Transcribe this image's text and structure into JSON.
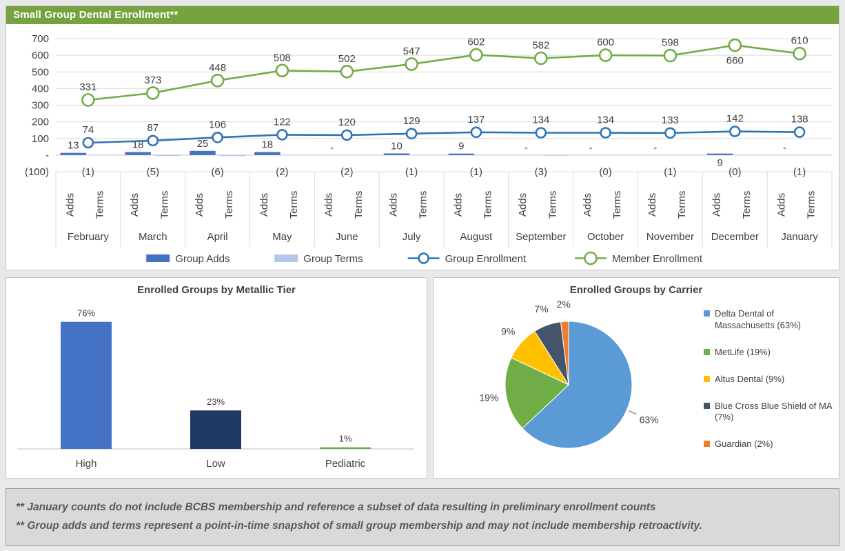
{
  "header": {
    "title": "Small Group Dental Enrollment**"
  },
  "theme": {
    "header_green": "#76A240",
    "footnote_bg": "#D9D9D9",
    "footnote_text": "#595959"
  },
  "chart_data": [
    {
      "type": "combo-bar-line",
      "title": "Small Group Dental Enrollment**",
      "categories": [
        "February",
        "March",
        "April",
        "May",
        "June",
        "July",
        "August",
        "September",
        "October",
        "November",
        "December",
        "January"
      ],
      "sub_categories": [
        "Adds",
        "Terms"
      ],
      "ylim": [
        -100,
        700
      ],
      "y_ticks": [
        700,
        600,
        500,
        400,
        300,
        200,
        100,
        0,
        -100
      ],
      "y_tick_labels": [
        "700",
        "600",
        "500",
        "400",
        "300",
        "200",
        "100",
        "-",
        "(100)"
      ],
      "grid": true,
      "legend_position": "bottom",
      "series": [
        {
          "name": "Group Adds",
          "type": "bar",
          "color": "#4472C4",
          "values": [
            13,
            18,
            25,
            18,
            0,
            10,
            9,
            0,
            0,
            0,
            9,
            0
          ],
          "labels": [
            "13",
            "18",
            "25",
            "18",
            "-",
            "10",
            "9",
            "-",
            "-",
            "-",
            "9",
            "-"
          ],
          "label_below_indices": [
            10
          ]
        },
        {
          "name": "Group Terms",
          "type": "bar",
          "color": "#B4C7E7",
          "values": [
            -1,
            -5,
            -6,
            -2,
            -2,
            -1,
            -1,
            -3,
            0,
            -1,
            0,
            -1
          ],
          "labels": [
            "(1)",
            "(5)",
            "(6)",
            "(2)",
            "(2)",
            "(1)",
            "(1)",
            "(3)",
            "(0)",
            "(1)",
            "(0)",
            "(1)"
          ]
        },
        {
          "name": "Group Enrollment",
          "type": "line",
          "color": "#2E75B6",
          "marker_radius": 7,
          "values": [
            74,
            87,
            106,
            122,
            120,
            129,
            137,
            134,
            134,
            133,
            142,
            138
          ]
        },
        {
          "name": "Member Enrollment",
          "type": "line",
          "color": "#70AD47",
          "marker_radius": 8.5,
          "values": [
            331,
            373,
            448,
            508,
            502,
            547,
            602,
            582,
            600,
            598,
            660,
            610
          ],
          "label_below_indices": [
            10
          ]
        }
      ]
    },
    {
      "type": "bar",
      "title": "Enrolled Groups by Metallic Tier",
      "categories": [
        "High",
        "Low",
        "Pediatric"
      ],
      "values": [
        76,
        23,
        1
      ],
      "labels": [
        "76%",
        "23%",
        "1%"
      ],
      "colors": [
        "#4472C4",
        "#1F3864",
        "#70AD47"
      ],
      "ylim": [
        0,
        80
      ],
      "grid": false
    },
    {
      "type": "pie",
      "title": "Enrolled Groups by Carrier",
      "legend_position": "right",
      "slices": [
        {
          "label": "Delta Dental of Massachusetts (63%)",
          "value": 63,
          "pct_label": "63%",
          "color": "#5B9BD5",
          "leader_line": true
        },
        {
          "label": "MetLife (19%)",
          "value": 19,
          "pct_label": "19%",
          "color": "#70AD47"
        },
        {
          "label": "Altus Dental (9%)",
          "value": 9,
          "pct_label": "9%",
          "color": "#FFC000"
        },
        {
          "label": "Blue Cross Blue Shield of MA (7%)",
          "value": 7,
          "pct_label": "7%",
          "color": "#44546A"
        },
        {
          "label": "Guardian (2%)",
          "value": 2,
          "pct_label": "2%",
          "color": "#ED7D31"
        }
      ]
    }
  ],
  "footnotes": [
    "** January counts do not include BCBS membership and reference a subset of data resulting in preliminary enrollment counts",
    "** Group adds and terms represent a point-in-time snapshot of small group membership and may not include membership retroactivity."
  ]
}
